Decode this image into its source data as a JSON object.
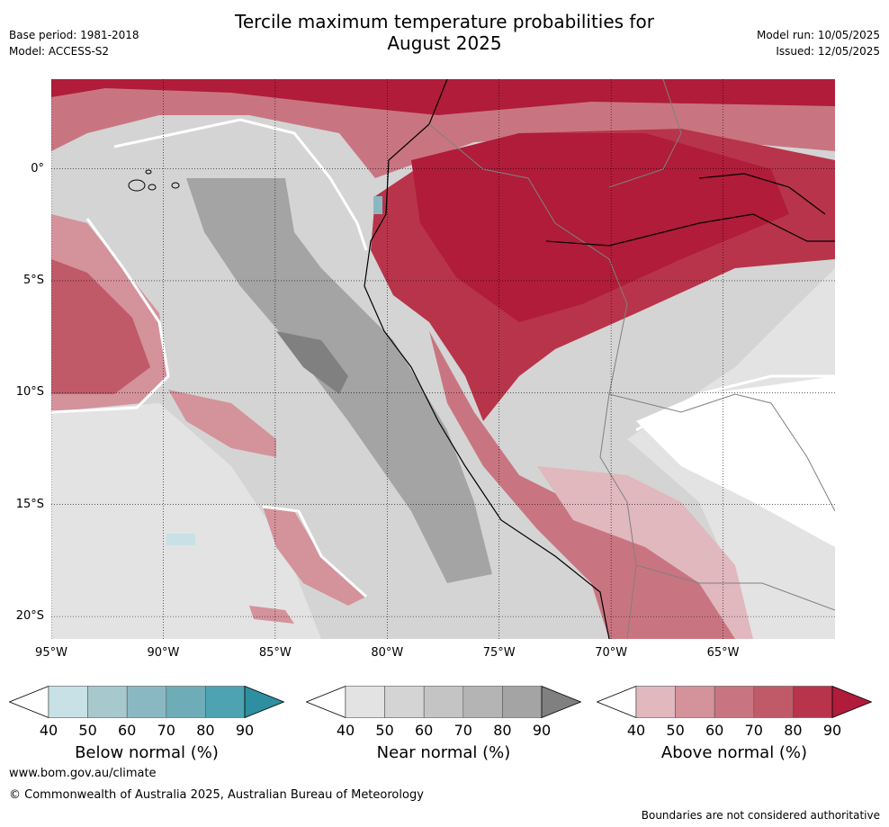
{
  "header": {
    "title_line1": "Tercile maximum temperature probabilities for",
    "title_line2": "August 2025",
    "base_period": "Base period: 1981-2018",
    "model": "Model: ACCESS-S2",
    "model_run": "Model run: 10/05/2025",
    "issued": "Issued: 12/05/2025"
  },
  "map": {
    "lon_labels": [
      "95°W",
      "90°W",
      "85°W",
      "80°W",
      "75°W",
      "70°W",
      "65°W"
    ],
    "lat_labels": [
      "0°",
      "5°S",
      "10°S",
      "15°S",
      "20°S"
    ],
    "extent": {
      "lon_min": -95,
      "lon_max": -60,
      "lat_min": -21,
      "lat_max": 4
    },
    "colors": {
      "below": [
        "#ffffff",
        "#c7e1e6",
        "#a7c8cc",
        "#8ab8c2",
        "#6eadb8",
        "#4da3b1",
        "#2e8fa0"
      ],
      "near": [
        "#ffffff",
        "#e3e3e3",
        "#d4d4d4",
        "#c4c4c4",
        "#b4b4b4",
        "#a4a4a4",
        "#808080"
      ],
      "above": [
        "#ffffff",
        "#e0b8bd",
        "#d4929b",
        "#c97581",
        "#c05a69",
        "#b8344a",
        "#b01c3a"
      ]
    }
  },
  "colorbars": [
    {
      "label": "Below normal (%)",
      "ticks": [
        "40",
        "50",
        "60",
        "70",
        "80",
        "90"
      ],
      "palette": "below"
    },
    {
      "label": "Near normal (%)",
      "ticks": [
        "40",
        "50",
        "60",
        "70",
        "80",
        "90"
      ],
      "palette": "near"
    },
    {
      "label": "Above normal (%)",
      "ticks": [
        "40",
        "50",
        "60",
        "70",
        "80",
        "90"
      ],
      "palette": "above"
    }
  ],
  "footer": {
    "url": "www.bom.gov.au/climate",
    "copyright": "© Commonwealth of Australia 2025, Australian Bureau of Meteorology",
    "disclaimer": "Boundaries are not considered authoritative"
  }
}
